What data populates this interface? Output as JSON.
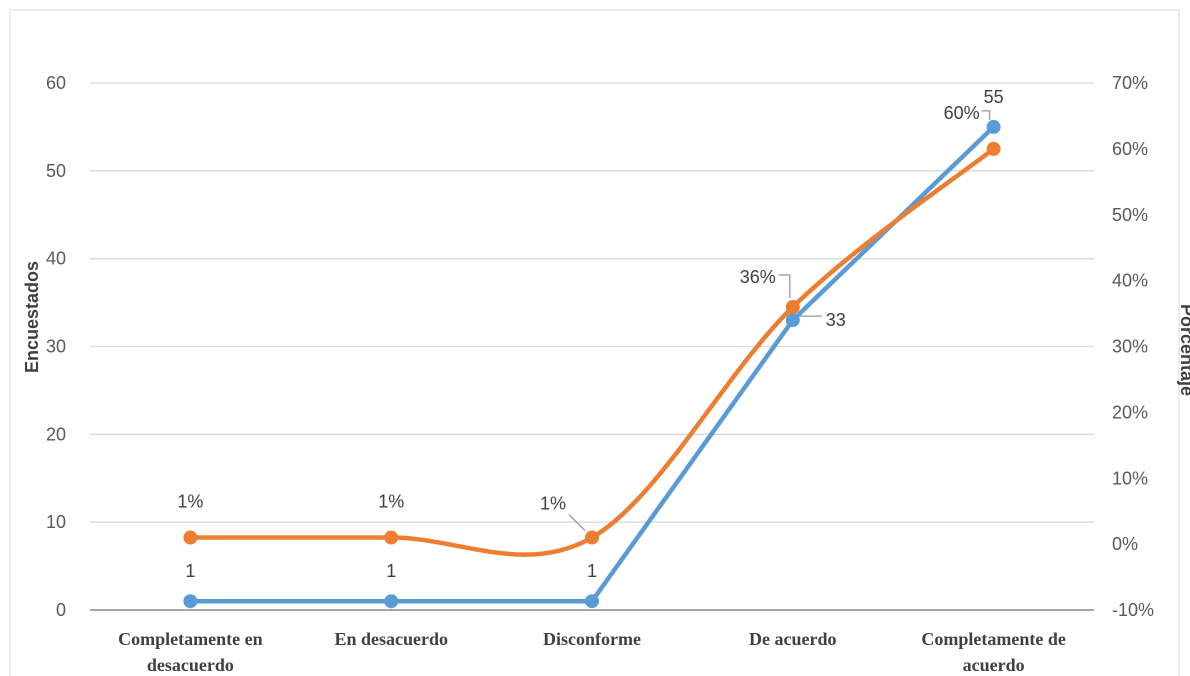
{
  "chart_data": {
    "type": "line",
    "categories": [
      [
        "Completamente en",
        "desacuerdo"
      ],
      [
        "En desacuerdo"
      ],
      [
        "Disconforme"
      ],
      [
        "De acuerdo"
      ],
      [
        "Completamente de",
        "acuerdo"
      ]
    ],
    "ylabel": "Encuestados",
    "y2label": "Porcentaje",
    "ylim": [
      0,
      60
    ],
    "y2lim": [
      -0.1,
      0.7
    ],
    "yticks": [
      "0",
      "10",
      "20",
      "30",
      "40",
      "50",
      "60"
    ],
    "y2ticks": [
      "-10%",
      "0%",
      "10%",
      "20%",
      "30%",
      "40%",
      "50%",
      "60%",
      "70%"
    ],
    "grid": true,
    "series": [
      {
        "axis": "left",
        "color": "#5B9BD5",
        "smooth": false,
        "values": [
          1,
          1,
          1,
          33,
          55
        ],
        "labels": [
          "1",
          "1",
          "1",
          "33",
          "55"
        ]
      },
      {
        "axis": "right",
        "color": "#ED7D31",
        "smooth": true,
        "values": [
          0.01,
          0.01,
          0.01,
          0.36,
          0.6
        ],
        "labels": [
          "1%",
          "1%",
          "1%",
          "36%",
          "60%"
        ]
      }
    ]
  }
}
